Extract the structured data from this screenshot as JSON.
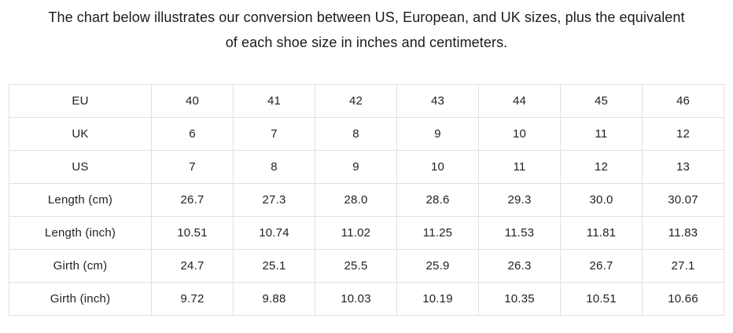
{
  "page": {
    "title_lines": [
      "The chart below illustrates our conversion between US, European, and UK sizes, plus the equivalent",
      "of each shoe size in inches and centimeters."
    ]
  },
  "chart_data": {
    "type": "table",
    "title": "The chart below illustrates our conversion between US, European, and UK sizes, plus the equivalent of each shoe size in inches and centimeters.",
    "row_headers": [
      "EU",
      "UK",
      "US",
      "Length (cm)",
      "Length (inch)",
      "Girth (cm)",
      "Girth (inch)"
    ],
    "rows": [
      {
        "label": "EU",
        "values": [
          "40",
          "41",
          "42",
          "43",
          "44",
          "45",
          "46"
        ]
      },
      {
        "label": "UK",
        "values": [
          "6",
          "7",
          "8",
          "9",
          "10",
          "11",
          "12"
        ]
      },
      {
        "label": "US",
        "values": [
          "7",
          "8",
          "9",
          "10",
          "11",
          "12",
          "13"
        ]
      },
      {
        "label": "Length (cm)",
        "values": [
          "26.7",
          "27.3",
          "28.0",
          "28.6",
          "29.3",
          "30.0",
          "30.07"
        ]
      },
      {
        "label": "Length (inch)",
        "values": [
          "10.51",
          "10.74",
          "11.02",
          "11.25",
          "11.53",
          "11.81",
          "11.83"
        ]
      },
      {
        "label": "Girth (cm)",
        "values": [
          "24.7",
          "25.1",
          "25.5",
          "25.9",
          "26.3",
          "26.7",
          "27.1"
        ]
      },
      {
        "label": "Girth (inch)",
        "values": [
          "9.72",
          "9.88",
          "10.03",
          "10.19",
          "10.35",
          "10.51",
          "10.66"
        ]
      }
    ],
    "layout": {
      "grid": true,
      "columns": 8,
      "first_column_is_header": true
    }
  },
  "colors": {
    "background": "#ffffff",
    "grid_border": "#e1e1e1",
    "text": "#222222",
    "title_text": "#1b1b1b"
  }
}
